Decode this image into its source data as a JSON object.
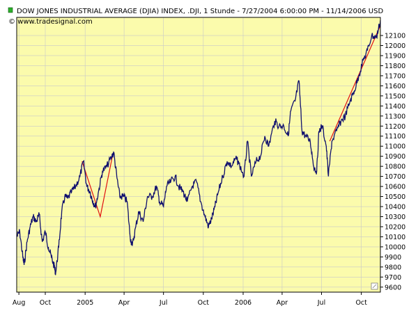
{
  "header": {
    "title": "DOW JONES INDUSTRIAL AVERAGE (DJIA) INDEX, .DJI, 1 Stunde - 7/27/2004 6:00:00 PM - 11/14/2006 USD",
    "source": "© www.tradesignal.com",
    "legend_marker_color": "#2bb02b"
  },
  "colors": {
    "plot_background": "#fbfbac",
    "grid": "#c8c8c8",
    "price_line": "#10106e",
    "trendline": "#e01010",
    "frame": "#000000"
  },
  "chart_data": {
    "type": "line",
    "title": "DOW JONES INDUSTRIAL AVERAGE (DJIA) INDEX, .DJI, 1 Stunde - 7/27/2004 6:00:00 PM - 11/14/2006 USD",
    "xlabel": "",
    "ylabel": "",
    "x_range": [
      "2004-07-27",
      "2006-11-14"
    ],
    "x_tick_labels": [
      {
        "date": "2004-08-01",
        "label": "Aug"
      },
      {
        "date": "2004-10-01",
        "label": "Oct"
      },
      {
        "date": "2005-01-01",
        "label": "2005"
      },
      {
        "date": "2005-04-01",
        "label": "Apr"
      },
      {
        "date": "2005-07-01",
        "label": "Jul"
      },
      {
        "date": "2005-10-01",
        "label": "Oct"
      },
      {
        "date": "2006-01-01",
        "label": "2006"
      },
      {
        "date": "2006-04-01",
        "label": "Apr"
      },
      {
        "date": "2006-07-01",
        "label": "Jul"
      },
      {
        "date": "2006-10-01",
        "label": "Oct"
      }
    ],
    "ylim": [
      9550,
      12280
    ],
    "y_ticks": [
      9600,
      9700,
      9800,
      9900,
      10000,
      10100,
      10200,
      10300,
      10400,
      10500,
      10600,
      10700,
      10800,
      10900,
      11000,
      11100,
      11200,
      11300,
      11400,
      11500,
      11600,
      11700,
      11800,
      11900,
      12000,
      12100
    ],
    "y_axis_side": "right",
    "grid": true,
    "series": [
      {
        "values": [
          [
            "2004-07-27",
            10100
          ],
          [
            "2004-08-03",
            10150
          ],
          [
            "2004-08-10",
            9900
          ],
          [
            "2004-08-13",
            9820
          ],
          [
            "2004-08-20",
            10050
          ],
          [
            "2004-08-27",
            10200
          ],
          [
            "2004-09-03",
            10300
          ],
          [
            "2004-09-10",
            10250
          ],
          [
            "2004-09-17",
            10320
          ],
          [
            "2004-09-24",
            10050
          ],
          [
            "2004-10-01",
            10150
          ],
          [
            "2004-10-08",
            10000
          ],
          [
            "2004-10-15",
            9900
          ],
          [
            "2004-10-22",
            9800
          ],
          [
            "2004-10-25",
            9740
          ],
          [
            "2004-11-01",
            10000
          ],
          [
            "2004-11-08",
            10350
          ],
          [
            "2004-11-15",
            10500
          ],
          [
            "2004-11-22",
            10480
          ],
          [
            "2004-12-01",
            10550
          ],
          [
            "2004-12-10",
            10600
          ],
          [
            "2004-12-20",
            10700
          ],
          [
            "2004-12-28",
            10850
          ],
          [
            "2005-01-05",
            10600
          ],
          [
            "2005-01-12",
            10550
          ],
          [
            "2005-01-19",
            10450
          ],
          [
            "2005-01-25",
            10400
          ],
          [
            "2005-02-01",
            10550
          ],
          [
            "2005-02-10",
            10750
          ],
          [
            "2005-02-20",
            10800
          ],
          [
            "2005-03-04",
            10900
          ],
          [
            "2005-03-08",
            10940
          ],
          [
            "2005-03-15",
            10700
          ],
          [
            "2005-03-22",
            10500
          ],
          [
            "2005-03-31",
            10500
          ],
          [
            "2005-04-08",
            10450
          ],
          [
            "2005-04-15",
            10100
          ],
          [
            "2005-04-20",
            10010
          ],
          [
            "2005-04-28",
            10200
          ],
          [
            "2005-05-05",
            10350
          ],
          [
            "2005-05-15",
            10250
          ],
          [
            "2005-05-25",
            10500
          ],
          [
            "2005-06-05",
            10500
          ],
          [
            "2005-06-15",
            10600
          ],
          [
            "2005-06-22",
            10450
          ],
          [
            "2005-07-01",
            10400
          ],
          [
            "2005-07-08",
            10600
          ],
          [
            "2005-07-18",
            10650
          ],
          [
            "2005-07-28",
            10700
          ],
          [
            "2005-08-05",
            10600
          ],
          [
            "2005-08-15",
            10550
          ],
          [
            "2005-08-25",
            10450
          ],
          [
            "2005-09-05",
            10600
          ],
          [
            "2005-09-15",
            10650
          ],
          [
            "2005-09-25",
            10450
          ],
          [
            "2005-10-05",
            10300
          ],
          [
            "2005-10-13",
            10200
          ],
          [
            "2005-10-20",
            10280
          ],
          [
            "2005-10-28",
            10400
          ],
          [
            "2005-11-05",
            10550
          ],
          [
            "2005-11-15",
            10700
          ],
          [
            "2005-11-25",
            10850
          ],
          [
            "2005-12-05",
            10800
          ],
          [
            "2005-12-15",
            10880
          ],
          [
            "2005-12-22",
            10830
          ],
          [
            "2006-01-03",
            10700
          ],
          [
            "2006-01-11",
            11050
          ],
          [
            "2006-01-20",
            10700
          ],
          [
            "2006-01-31",
            10850
          ],
          [
            "2006-02-10",
            10900
          ],
          [
            "2006-02-20",
            11100
          ],
          [
            "2006-03-01",
            11000
          ],
          [
            "2006-03-15",
            11250
          ],
          [
            "2006-03-25",
            11200
          ],
          [
            "2006-04-05",
            11200
          ],
          [
            "2006-04-15",
            11100
          ],
          [
            "2006-04-21",
            11350
          ],
          [
            "2006-05-01",
            11450
          ],
          [
            "2006-05-10",
            11650
          ],
          [
            "2006-05-17",
            11150
          ],
          [
            "2006-05-25",
            11100
          ],
          [
            "2006-06-05",
            11050
          ],
          [
            "2006-06-13",
            10800
          ],
          [
            "2006-06-20",
            10750
          ],
          [
            "2006-06-25",
            11150
          ],
          [
            "2006-07-03",
            11200
          ],
          [
            "2006-07-12",
            11000
          ],
          [
            "2006-07-17",
            10700
          ],
          [
            "2006-07-25",
            11050
          ],
          [
            "2006-08-05",
            11150
          ],
          [
            "2006-08-15",
            11250
          ],
          [
            "2006-08-25",
            11300
          ],
          [
            "2006-09-05",
            11450
          ],
          [
            "2006-09-15",
            11550
          ],
          [
            "2006-09-25",
            11700
          ],
          [
            "2006-10-05",
            11850
          ],
          [
            "2006-10-15",
            11950
          ],
          [
            "2006-10-25",
            12100
          ],
          [
            "2006-11-05",
            12080
          ],
          [
            "2006-11-14",
            12250
          ]
        ]
      }
    ],
    "trendlines": [
      [
        [
          "2004-12-25",
          10850
        ],
        [
          "2005-02-05",
          10300
        ],
        [
          "2005-03-05",
          10900
        ]
      ],
      [
        [
          "2006-07-20",
          11050
        ],
        [
          "2006-11-14",
          12200
        ]
      ]
    ]
  }
}
